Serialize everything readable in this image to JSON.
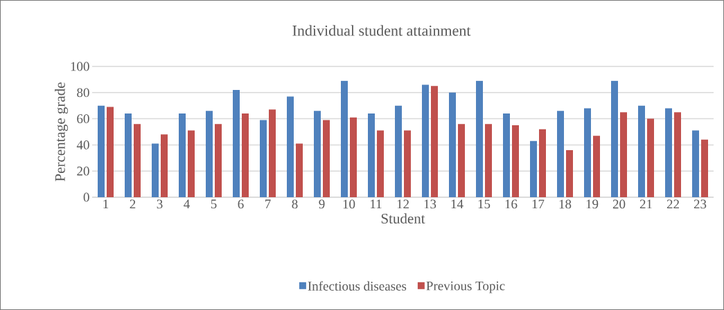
{
  "chart_data": {
    "type": "bar",
    "title": "Individual student attainment",
    "xlabel": "Student",
    "ylabel": "Percentage grade",
    "categories": [
      "1",
      "2",
      "3",
      "4",
      "5",
      "6",
      "7",
      "8",
      "9",
      "10",
      "11",
      "12",
      "13",
      "14",
      "15",
      "16",
      "17",
      "18",
      "19",
      "20",
      "21",
      "22",
      "23"
    ],
    "series": [
      {
        "name": "Infectious diseases",
        "color": "#4f81bd",
        "values": [
          70,
          64,
          41,
          64,
          66,
          82,
          59,
          77,
          66,
          89,
          64,
          70,
          86,
          80,
          89,
          64,
          43,
          66,
          68,
          89,
          70,
          68,
          51
        ]
      },
      {
        "name": "Previous Topic",
        "color": "#c0504d",
        "values": [
          69,
          56,
          48,
          51,
          56,
          64,
          67,
          41,
          59,
          61,
          51,
          51,
          85,
          56,
          56,
          55,
          52,
          36,
          47,
          65,
          60,
          65,
          44
        ]
      }
    ],
    "ylim": [
      0,
      100
    ],
    "yticks": [
      0,
      20,
      40,
      60,
      80,
      100
    ],
    "grid": "y",
    "legend": "bottom"
  }
}
